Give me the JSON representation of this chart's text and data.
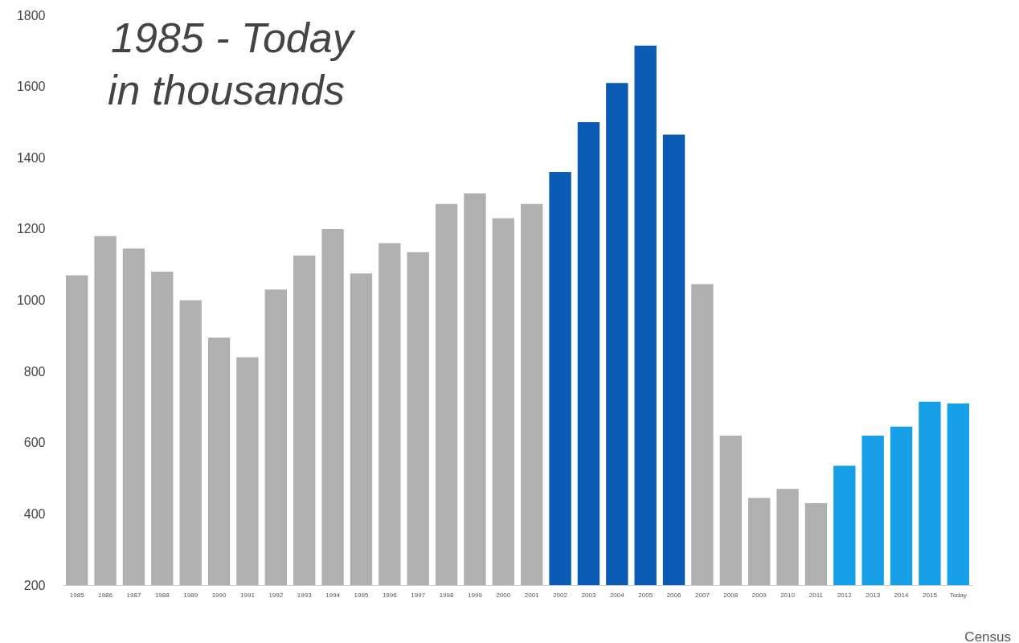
{
  "chart_data": {
    "type": "bar",
    "title": "1985 - Today",
    "subtitle": "in thousands",
    "categories": [
      "1985",
      "1986",
      "1987",
      "1988",
      "1989",
      "1990",
      "1991",
      "1992",
      "1993",
      "1994",
      "1995",
      "1996",
      "1997",
      "1998",
      "1999",
      "2000",
      "2001",
      "2002",
      "2003",
      "2004",
      "2005",
      "2006",
      "2007",
      "2008",
      "2009",
      "2010",
      "2011",
      "2012",
      "2013",
      "2014",
      "2015",
      "Today"
    ],
    "values": [
      1070,
      1180,
      1145,
      1080,
      1000,
      895,
      840,
      1030,
      1125,
      1200,
      1075,
      1160,
      1135,
      1270,
      1300,
      1230,
      1270,
      1360,
      1500,
      1610,
      1715,
      1465,
      1045,
      620,
      445,
      470,
      430,
      535,
      620,
      645,
      715,
      710
    ],
    "colors": [
      "#b0b0b0",
      "#b0b0b0",
      "#b0b0b0",
      "#b0b0b0",
      "#b0b0b0",
      "#b0b0b0",
      "#b0b0b0",
      "#b0b0b0",
      "#b0b0b0",
      "#b0b0b0",
      "#b0b0b0",
      "#b0b0b0",
      "#b0b0b0",
      "#b0b0b0",
      "#b0b0b0",
      "#b0b0b0",
      "#b0b0b0",
      "#0b5bb5",
      "#0b5bb5",
      "#0b5bb5",
      "#0b5bb5",
      "#0b5bb5",
      "#b0b0b0",
      "#b0b0b0",
      "#b0b0b0",
      "#b0b0b0",
      "#b0b0b0",
      "#17a0e8",
      "#17a0e8",
      "#17a0e8",
      "#17a0e8",
      "#17a0e8"
    ],
    "ylim": [
      200,
      1800
    ],
    "yticks": [
      200,
      400,
      600,
      800,
      1000,
      1200,
      1400,
      1600,
      1800
    ],
    "grid": false,
    "annotations": [
      "Census"
    ]
  }
}
